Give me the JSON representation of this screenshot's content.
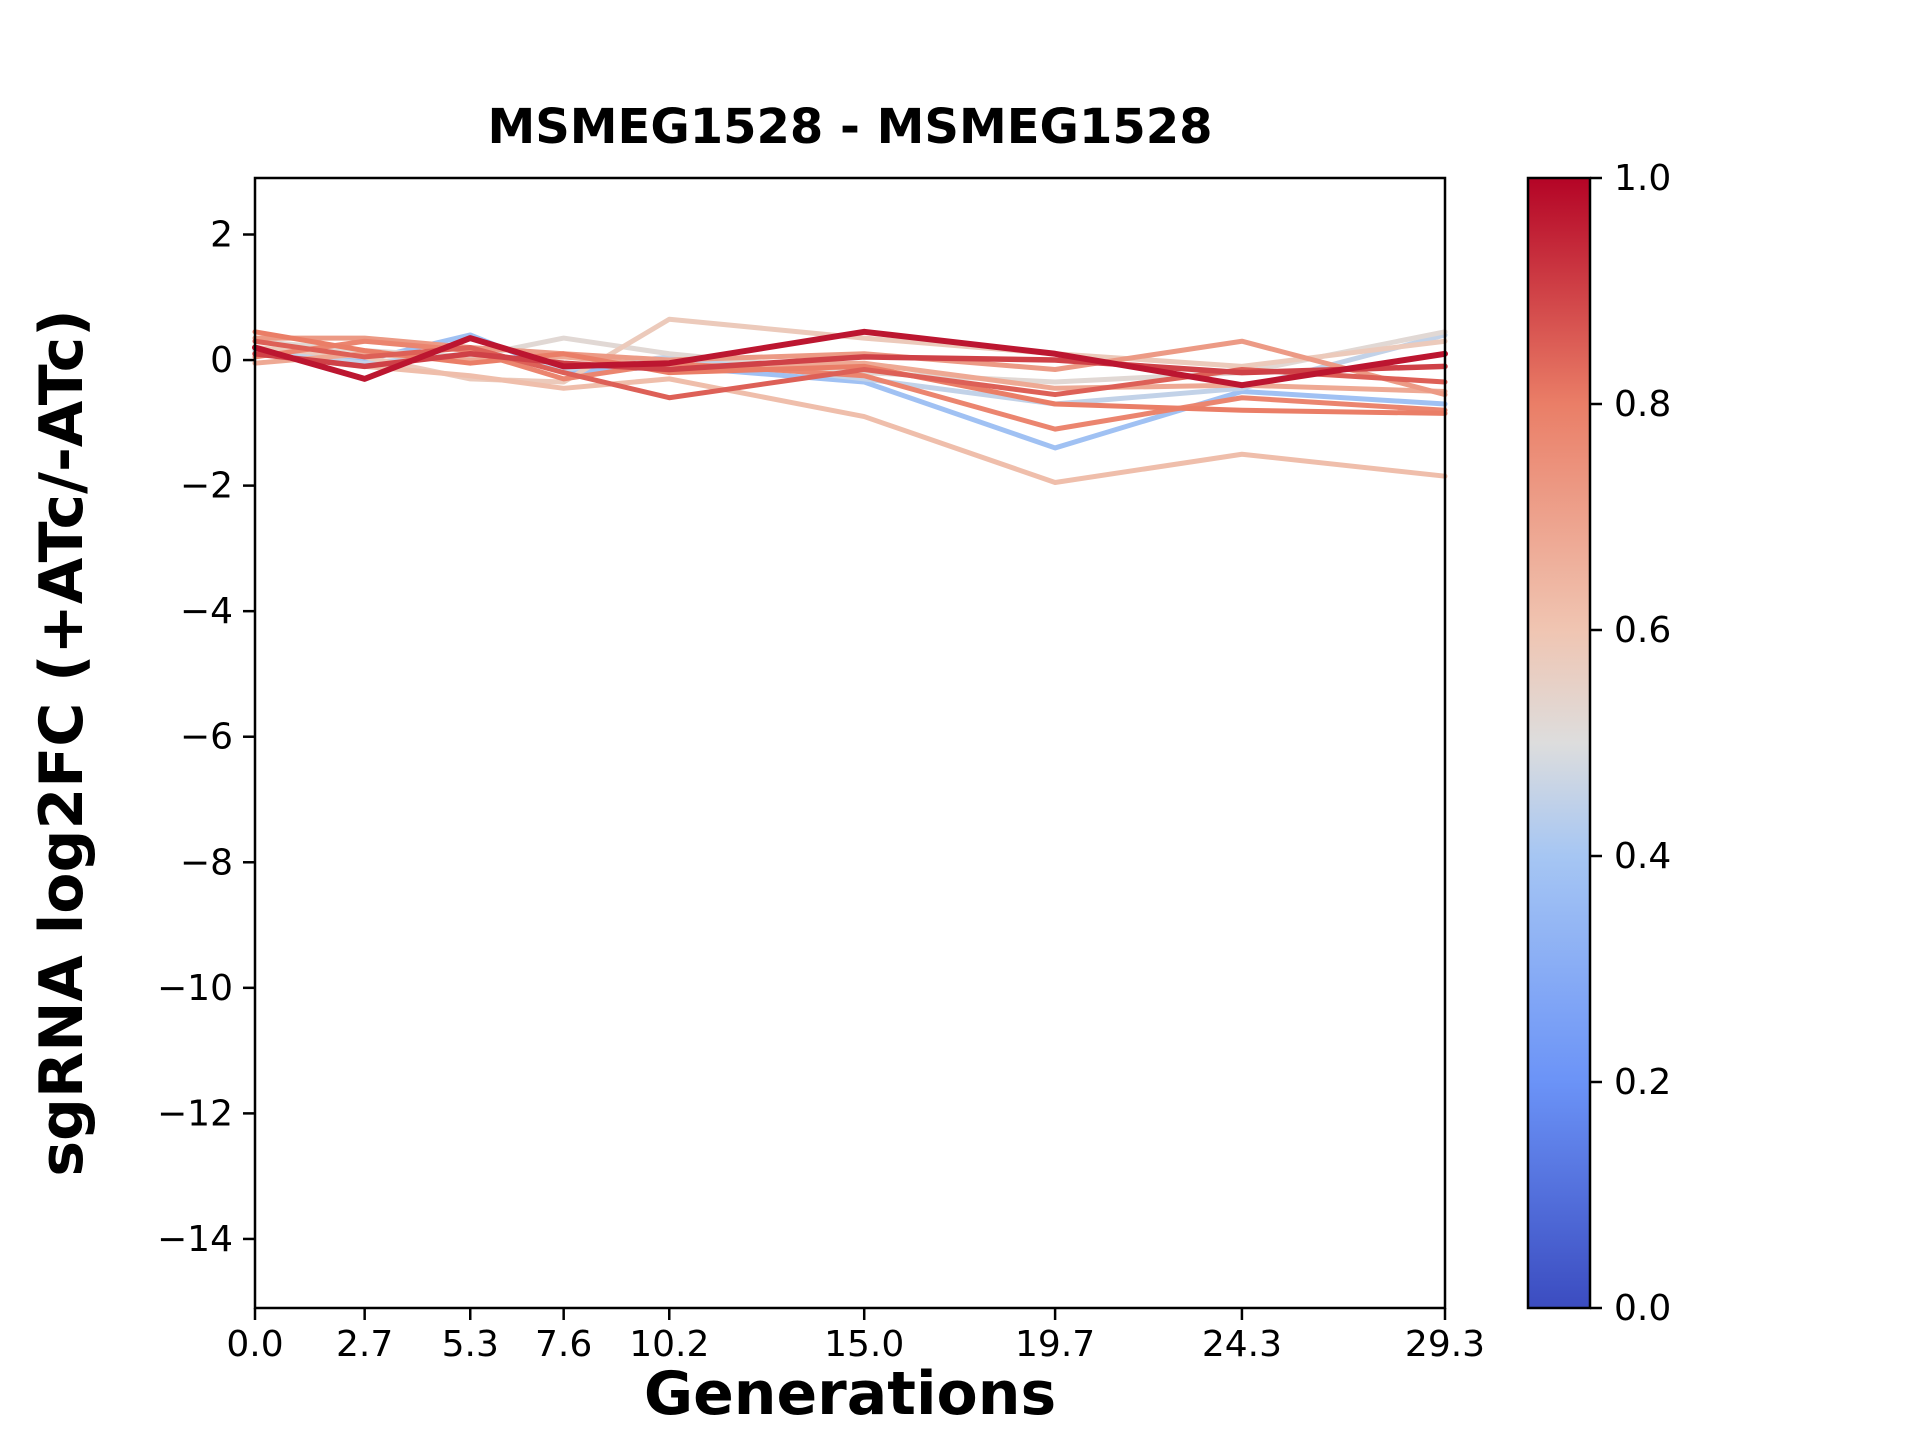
{
  "chart_data": {
    "type": "line",
    "title": "MSMEG1528 - MSMEG1528",
    "xlabel": "Generations",
    "ylabel": "sgRNA log2FC (+ATc/-ATc)",
    "x": [
      0.0,
      2.7,
      5.3,
      7.6,
      10.2,
      15.0,
      19.7,
      24.3,
      29.3
    ],
    "xlim": [
      0.0,
      29.3
    ],
    "ylim": [
      -15.1,
      2.9
    ],
    "xticks": [
      0.0,
      2.7,
      5.3,
      7.6,
      10.2,
      15.0,
      19.7,
      24.3,
      29.3
    ],
    "xtick_labels": [
      "0.0",
      "2.7",
      "5.3",
      "7.6",
      "10.2",
      "15.0",
      "19.7",
      "24.3",
      "29.3"
    ],
    "yticks": [
      2,
      0,
      -2,
      -4,
      -6,
      -8,
      -10,
      -12,
      -14
    ],
    "ytick_labels": [
      "2",
      "0",
      "−2",
      "−4",
      "−6",
      "−8",
      "−10",
      "−12",
      "−14"
    ],
    "grid": false,
    "legend": "none",
    "colormap": "coolwarm",
    "series": [
      {
        "color_value": 0.97,
        "line_width": 6,
        "values": [
          0.2,
          -0.3,
          0.35,
          -0.1,
          -0.05,
          0.45,
          0.1,
          -0.4,
          0.1
        ]
      },
      {
        "color_value": 0.9,
        "line_width": 5.5,
        "values": [
          0.1,
          -0.1,
          0.1,
          -0.05,
          -0.15,
          0.05,
          0.0,
          -0.2,
          -0.1
        ]
      },
      {
        "color_value": 0.85,
        "line_width": 5,
        "values": [
          0.3,
          0.05,
          0.2,
          -0.2,
          -0.6,
          -0.15,
          -0.55,
          -0.15,
          -0.35
        ]
      },
      {
        "color_value": 0.8,
        "line_width": 5,
        "values": [
          0.45,
          0.15,
          -0.05,
          0.1,
          -0.2,
          -0.1,
          -0.7,
          -0.8,
          -0.85
        ]
      },
      {
        "color_value": 0.78,
        "line_width": 5,
        "values": [
          0.05,
          0.3,
          0.15,
          -0.3,
          -0.05,
          -0.25,
          -1.1,
          -0.6,
          -0.8
        ]
      },
      {
        "color_value": 0.72,
        "line_width": 5,
        "values": [
          0.35,
          0.35,
          0.2,
          0.1,
          0.0,
          0.1,
          -0.15,
          0.3,
          -0.55
        ]
      },
      {
        "color_value": 0.68,
        "line_width": 5,
        "values": [
          -0.05,
          0.1,
          0.0,
          0.05,
          -0.1,
          -0.05,
          -0.45,
          -0.4,
          -0.5
        ]
      },
      {
        "color_value": 0.62,
        "line_width": 5,
        "values": [
          0.1,
          -0.1,
          -0.25,
          -0.45,
          -0.3,
          -0.9,
          -1.95,
          -1.5,
          -1.85
        ]
      },
      {
        "color_value": 0.58,
        "line_width": 5,
        "values": [
          0.2,
          0.05,
          -0.3,
          -0.35,
          0.65,
          0.35,
          0.1,
          -0.1,
          0.3
        ]
      },
      {
        "color_value": 0.52,
        "line_width": 5,
        "values": [
          0.3,
          0.15,
          0.05,
          0.35,
          0.1,
          -0.2,
          -0.35,
          -0.2,
          0.45
        ]
      },
      {
        "color_value": 0.45,
        "line_width": 5,
        "values": [
          0.15,
          -0.05,
          0.1,
          -0.15,
          0.05,
          -0.3,
          -0.7,
          -0.45,
          0.4
        ]
      },
      {
        "color_value": 0.38,
        "line_width": 5,
        "values": [
          0.1,
          0.0,
          0.4,
          -0.2,
          -0.1,
          -0.35,
          -1.4,
          -0.5,
          -0.7
        ]
      }
    ],
    "colorbar": {
      "min": 0.0,
      "max": 1.0,
      "ticks": [
        0.0,
        0.2,
        0.4,
        0.6,
        0.8,
        1.0
      ],
      "tick_labels": [
        "0.0",
        "0.2",
        "0.4",
        "0.6",
        "0.8",
        "1.0"
      ]
    },
    "colors": {
      "frame": "#000000",
      "background": "#ffffff",
      "coolwarm_low": "#3b4cc0",
      "coolwarm_mid": "#dddddd",
      "coolwarm_high": "#b40426"
    }
  }
}
